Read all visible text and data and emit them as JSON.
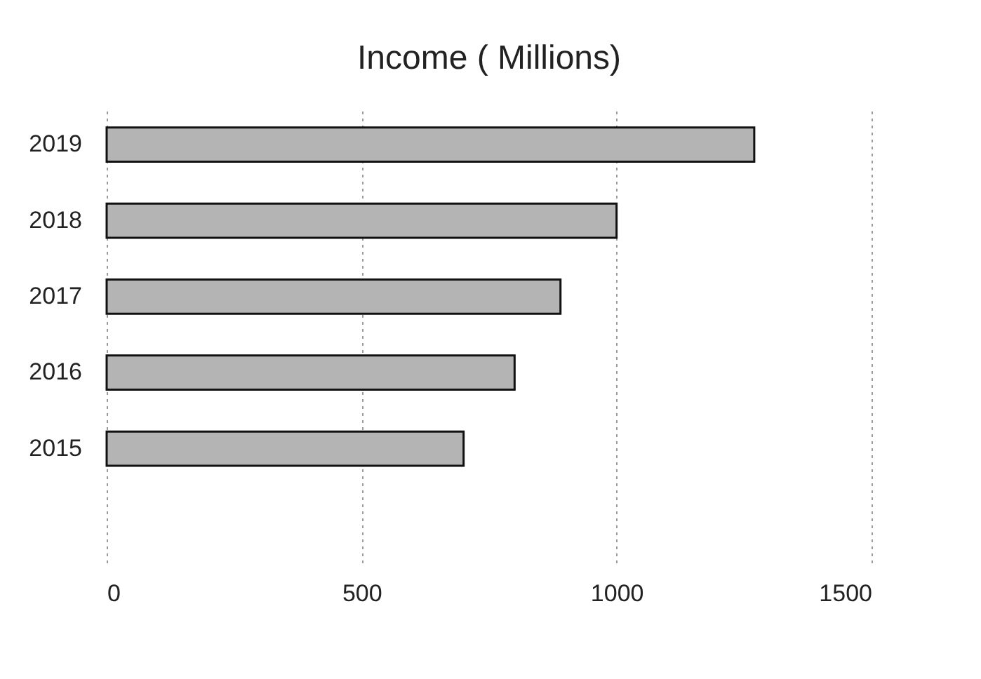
{
  "chart_data": {
    "type": "bar",
    "orientation": "horizontal",
    "title": "Income ( Millions)",
    "categories": [
      "2019",
      "2018",
      "2017",
      "2016",
      "2015",
      null
    ],
    "values": [
      1270,
      1000,
      890,
      800,
      700,
      null
    ],
    "color": "#b4b4b4",
    "xlim": [
      0,
      1500
    ],
    "xticks": [
      0,
      500,
      1000,
      1500
    ],
    "grid": "x"
  }
}
